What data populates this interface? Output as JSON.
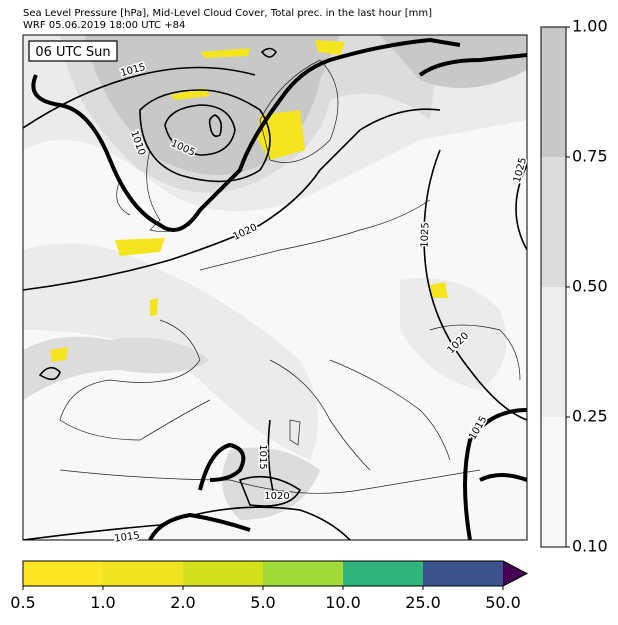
{
  "header": {
    "title_line1": "Sea Level Pressure [hPa], Mid-Level Cloud Cover, Total prec. in the last hour [mm]",
    "title_line2": "WRF 05.06.2019 18:00 UTC +84"
  },
  "map": {
    "time_label": "06 UTC Sun",
    "isobar_labels": [
      "1015",
      "1010",
      "1005",
      "1020",
      "1025",
      "1025",
      "1020",
      "1015",
      "1020",
      "1015",
      "1015"
    ]
  },
  "cloud_colorbar": {
    "ticks": [
      "0.10",
      "0.25",
      "0.50",
      "0.75",
      "1.00"
    ]
  },
  "precip_colorbar": {
    "ticks": [
      "0.5",
      "1.0",
      "2.0",
      "5.0",
      "10.0",
      "25.0",
      "50.0"
    ]
  }
}
